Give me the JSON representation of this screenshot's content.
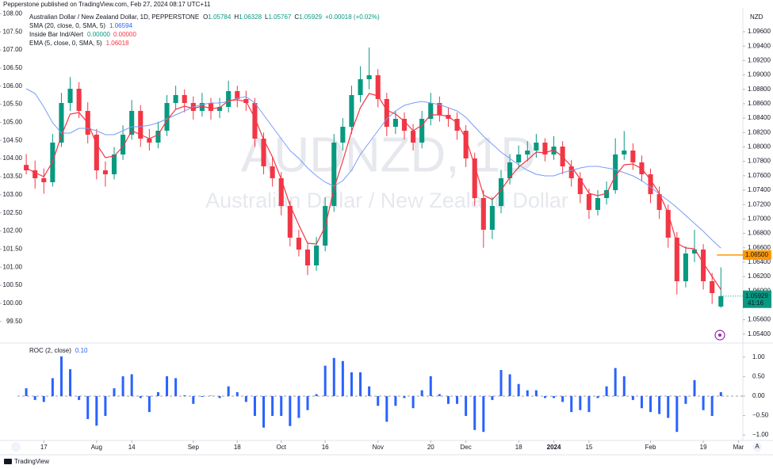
{
  "header": {
    "publisher": "Pepperstone published on TradingView.com, Feb 27, 2024 08:17 UTC+11",
    "symbol": "Australian Dollar / New Zealand Dollar, 1D, PEPPERSTONE",
    "o": "O",
    "h": "H",
    "l": "L",
    "c": "C",
    "change": "+0.00018 (+0.02%)",
    "currency": "NZD",
    "brand": "TradingView",
    "auto": "A"
  },
  "chart_data": [
    {
      "type": "candlestick",
      "watermark_symbol": "AUDNZD, 1D",
      "watermark_name": "Australian Dollar / New Zealand Dollar",
      "up_color": "#089981",
      "down_color": "#f23645",
      "xlim": [
        -1,
        81.5
      ],
      "xticks": [
        {
          "value": 2,
          "label": "17"
        },
        {
          "value": 8,
          "label": "Aug"
        },
        {
          "value": 12,
          "label": "14"
        },
        {
          "value": 19,
          "label": "Sep"
        },
        {
          "value": 24,
          "label": "18"
        },
        {
          "value": 29,
          "label": "Oct"
        },
        {
          "value": 34,
          "label": "16"
        },
        {
          "value": 40,
          "label": "Nov"
        },
        {
          "value": 46,
          "label": "20"
        },
        {
          "value": 50,
          "label": "Dec"
        },
        {
          "value": 56,
          "label": "18"
        },
        {
          "value": 60,
          "label": "2024",
          "bold": true
        },
        {
          "value": 64,
          "label": "15"
        },
        {
          "value": 71,
          "label": "Feb"
        },
        {
          "value": 77,
          "label": "19"
        },
        {
          "value": 81,
          "label": "Mar"
        }
      ],
      "ylim": [
        1.0531,
        1.0993
      ],
      "yticks": [
        {
          "value": 1.054,
          "label": "1.05400"
        },
        {
          "value": 1.056,
          "label": "1.05600"
        },
        {
          "value": 1.058,
          "label": "1.05800"
        },
        {
          "value": 1.06,
          "label": "1.06000"
        },
        {
          "value": 1.062,
          "label": "1.06200"
        },
        {
          "value": 1.064,
          "label": "1.06400"
        },
        {
          "value": 1.066,
          "label": "1.06600"
        },
        {
          "value": 1.068,
          "label": "1.06800"
        },
        {
          "value": 1.07,
          "label": "1.07000"
        },
        {
          "value": 1.072,
          "label": "1.07200"
        },
        {
          "value": 1.074,
          "label": "1.07400"
        },
        {
          "value": 1.076,
          "label": "1.07600"
        },
        {
          "value": 1.078,
          "label": "1.07800"
        },
        {
          "value": 1.08,
          "label": "1.08000"
        },
        {
          "value": 1.082,
          "label": "1.08200"
        },
        {
          "value": 1.084,
          "label": "1.08400"
        },
        {
          "value": 1.086,
          "label": "1.08600"
        },
        {
          "value": 1.088,
          "label": "1.08800"
        },
        {
          "value": 1.09,
          "label": "1.09000"
        },
        {
          "value": 1.092,
          "label": "1.09200"
        },
        {
          "value": 1.094,
          "label": "1.09400"
        },
        {
          "value": 1.096,
          "label": "1.09600"
        }
      ],
      "left_ylim": [
        98.97,
        108.16
      ],
      "left_yticks": [
        {
          "value": 99.5,
          "label": "99.50"
        },
        {
          "value": 100,
          "label": "100.00"
        },
        {
          "value": 100.5,
          "label": "100.50"
        },
        {
          "value": 101,
          "label": "101.00"
        },
        {
          "value": 101.5,
          "label": "101.50"
        },
        {
          "value": 102,
          "label": "102.00"
        },
        {
          "value": 102.5,
          "label": "102.50"
        },
        {
          "value": 103,
          "label": "103.00"
        },
        {
          "value": 103.5,
          "label": "103.50"
        },
        {
          "value": 104,
          "label": "104.00"
        },
        {
          "value": 104.5,
          "label": "104.50"
        },
        {
          "value": 105,
          "label": "105.00"
        },
        {
          "value": 105.5,
          "label": "105.50"
        },
        {
          "value": 106,
          "label": "106.00"
        },
        {
          "value": 106.5,
          "label": "106.50"
        },
        {
          "value": 107,
          "label": "107.00"
        },
        {
          "value": 107.5,
          "label": "107.50"
        },
        {
          "value": 108,
          "label": "108.00"
        }
      ],
      "hline": {
        "value": 1.065,
        "label": "1.06500",
        "color": "#ff9800"
      },
      "countdown": "41:16",
      "indicator": {
        "name": "Inside Bar Ind/Alert",
        "values": [
          "0.00000",
          "0.00000"
        ],
        "colors": [
          "#089981",
          "#f23645"
        ]
      },
      "ohlc": [
        [
          1.0775,
          1.079,
          1.0762,
          1.07675
        ],
        [
          1.07675,
          1.0781,
          1.0742,
          1.07565
        ],
        [
          1.07565,
          1.077,
          1.0735,
          1.0751
        ],
        [
          1.0751,
          1.0818,
          1.0745,
          1.0806
        ],
        [
          1.0806,
          1.0875,
          1.08,
          1.0861
        ],
        [
          1.0861,
          1.0897,
          1.085,
          1.08808
        ],
        [
          1.08808,
          1.089,
          1.084,
          1.085
        ],
        [
          1.085,
          1.0862,
          1.0805,
          1.0817
        ],
        [
          1.0817,
          1.0825,
          1.0755,
          1.07675
        ],
        [
          1.07675,
          1.078,
          1.0745,
          1.0762
        ],
        [
          1.0762,
          1.08,
          1.0755,
          1.07895
        ],
        [
          1.07895,
          1.083,
          1.0782,
          1.0817
        ],
        [
          1.0817,
          1.0865,
          1.081,
          1.085
        ],
        [
          1.085,
          1.0858,
          1.08,
          1.08115
        ],
        [
          1.08115,
          1.0825,
          1.0795,
          1.0806
        ],
        [
          1.0806,
          1.0835,
          1.0798,
          1.08225
        ],
        [
          1.08225,
          1.0872,
          1.0815,
          1.0861
        ],
        [
          1.0861,
          1.0885,
          1.0852,
          1.0872
        ],
        [
          1.0872,
          1.088,
          1.0848,
          1.0861
        ],
        [
          1.0861,
          1.087,
          1.0838,
          1.085
        ],
        [
          1.085,
          1.0875,
          1.0842,
          1.0861
        ],
        [
          1.0861,
          1.0868,
          1.0838,
          1.085
        ],
        [
          1.085,
          1.0868,
          1.084,
          1.08555
        ],
        [
          1.08555,
          1.0892,
          1.0848,
          1.08775
        ],
        [
          1.08775,
          1.0885,
          1.0855,
          1.08665
        ],
        [
          1.08665,
          1.0878,
          1.085,
          1.0861
        ],
        [
          1.0861,
          1.0868,
          1.08,
          1.08115
        ],
        [
          1.08115,
          1.082,
          1.0762,
          1.0773
        ],
        [
          1.0773,
          1.0785,
          1.0745,
          1.07565
        ],
        [
          1.07565,
          1.0765,
          1.0705,
          1.0718
        ],
        [
          1.0718,
          1.0725,
          1.0662,
          1.0674
        ],
        [
          1.0674,
          1.0685,
          1.0648,
          1.06575
        ],
        [
          1.06575,
          1.0668,
          1.0622,
          1.06355
        ],
        [
          1.06355,
          1.0675,
          1.0628,
          1.0663
        ],
        [
          1.0663,
          1.073,
          1.0655,
          1.0718
        ],
        [
          1.0718,
          1.0818,
          1.071,
          1.0806
        ],
        [
          1.0806,
          1.084,
          1.0795,
          1.0828
        ],
        [
          1.0828,
          1.0885,
          1.0818,
          1.0872
        ],
        [
          1.0872,
          1.0912,
          1.0862,
          1.0894
        ],
        [
          1.0894,
          1.0938,
          1.088,
          1.08995
        ],
        [
          1.08995,
          1.0908,
          1.0855,
          1.08665
        ],
        [
          1.08665,
          1.0875,
          1.0815,
          1.0828
        ],
        [
          1.0828,
          1.085,
          1.0818,
          1.0839
        ],
        [
          1.0839,
          1.0848,
          1.081,
          1.08225
        ],
        [
          1.08225,
          1.0832,
          1.0795,
          1.0806
        ],
        [
          1.0806,
          1.085,
          1.0798,
          1.0839
        ],
        [
          1.0839,
          1.0875,
          1.083,
          1.0861
        ],
        [
          1.0861,
          1.087,
          1.0835,
          1.08445
        ],
        [
          1.08445,
          1.0855,
          1.0828,
          1.0839
        ],
        [
          1.0839,
          1.0848,
          1.081,
          1.08225
        ],
        [
          1.08225,
          1.083,
          1.0772,
          1.0784
        ],
        [
          1.0784,
          1.0792,
          1.0718,
          1.0729
        ],
        [
          1.0729,
          1.074,
          1.066,
          1.0685
        ],
        [
          1.0685,
          1.073,
          1.0672,
          1.0718
        ],
        [
          1.0718,
          1.0768,
          1.0708,
          1.07565
        ],
        [
          1.07565,
          1.079,
          1.0748,
          1.07785
        ],
        [
          1.07785,
          1.0802,
          1.077,
          1.07895
        ],
        [
          1.07895,
          1.0808,
          1.078,
          1.0795
        ],
        [
          1.0795,
          1.0818,
          1.0785,
          1.0806
        ],
        [
          1.0806,
          1.0812,
          1.078,
          1.07895
        ],
        [
          1.07895,
          1.0815,
          1.0782,
          1.08005
        ],
        [
          1.08005,
          1.0808,
          1.0762,
          1.0773
        ],
        [
          1.0773,
          1.0782,
          1.0745,
          1.07565
        ],
        [
          1.07565,
          1.0765,
          1.0722,
          1.07345
        ],
        [
          1.07345,
          1.0742,
          1.07,
          1.07125
        ],
        [
          1.07125,
          1.074,
          1.0705,
          1.0729
        ],
        [
          1.0729,
          1.0752,
          1.072,
          1.074
        ],
        [
          1.074,
          1.0812,
          1.0735,
          1.07895
        ],
        [
          1.07895,
          1.0822,
          1.0782,
          1.0795
        ],
        [
          1.0795,
          1.0805,
          1.0768,
          1.07785
        ],
        [
          1.07785,
          1.0788,
          1.0752,
          1.0762
        ],
        [
          1.0762,
          1.077,
          1.0722,
          1.07345
        ],
        [
          1.07345,
          1.0745,
          1.07,
          1.07125
        ],
        [
          1.07125,
          1.072,
          1.066,
          1.0674
        ],
        [
          1.0674,
          1.0682,
          1.0595,
          1.06135
        ],
        [
          1.06135,
          1.0662,
          1.0605,
          1.0652
        ],
        [
          1.0652,
          1.0685,
          1.064,
          1.06575
        ],
        [
          1.06575,
          1.0665,
          1.0602,
          1.06135
        ],
        [
          1.06135,
          1.0625,
          1.0582,
          1.0597
        ],
        [
          1.05784,
          1.06328,
          1.05767,
          1.05929
        ]
      ],
      "series": [
        {
          "name": "SMA (20, close, 0, SMA, 5)",
          "color": "#7b9cf4",
          "values": [
            1.08808,
            1.08742,
            1.08555,
            1.08335,
            1.08192,
            1.08192,
            1.08258,
            1.08258,
            1.08225,
            1.0817,
            1.0817,
            1.08225,
            1.0828,
            1.0828,
            1.08302,
            1.08335,
            1.0839,
            1.08445,
            1.085,
            1.08555,
            1.08588,
            1.0861,
            1.0861,
            1.08632,
            1.08676,
            1.08698,
            1.0861,
            1.08445,
            1.0828,
            1.08115,
            1.0795,
            1.0784,
            1.07708,
            1.07598,
            1.0751,
            1.07455,
            1.07532,
            1.07675,
            1.07895,
            1.0806,
            1.08225,
            1.0839,
            1.085,
            1.08577,
            1.0861,
            1.08632,
            1.0861,
            1.08588,
            1.08544,
            1.085,
            1.08412,
            1.0828,
            1.08148,
            1.08038,
            1.07928,
            1.0784,
            1.07752,
            1.07675,
            1.0762,
            1.07598,
            1.07598,
            1.07642,
            1.07675,
            1.07708,
            1.0773,
            1.0773,
            1.07708,
            1.07686,
            1.07642,
            1.07598,
            1.07532,
            1.07444,
            1.07345,
            1.07257,
            1.07158,
            1.07048,
            1.06938,
            1.06828,
            1.06707,
            1.06594
          ]
        },
        {
          "name": "EMA (5, close, 0, SMA, 5)",
          "color": "#f23645",
          "values": [
            1.07708,
            1.07642,
            1.07587,
            1.07796,
            1.08159,
            1.08456,
            1.08478,
            1.08335,
            1.08038,
            1.07851,
            1.07873,
            1.08005,
            1.08225,
            1.0817,
            1.08115,
            1.0817,
            1.08368,
            1.08522,
            1.08566,
            1.08533,
            1.08566,
            1.08533,
            1.08544,
            1.08643,
            1.08654,
            1.08632,
            1.08401,
            1.08104,
            1.07862,
            1.07554,
            1.07191,
            1.06916,
            1.06663,
            1.06652,
            1.06894,
            1.07422,
            1.07807,
            1.08214,
            1.08544,
            1.08742,
            1.08709,
            1.08511,
            1.08456,
            1.08357,
            1.08225,
            1.08302,
            1.08445,
            1.08445,
            1.08423,
            1.08335,
            1.08115,
            1.07741,
            1.07334,
            1.07268,
            1.074,
            1.07576,
            1.07719,
            1.07818,
            1.07928,
            1.07917,
            1.07961,
            1.07862,
            1.0773,
            1.07554,
            1.07356,
            1.07323,
            1.07356,
            1.07598,
            1.07752,
            1.07763,
            1.07697,
            1.07543,
            1.07356,
            1.07081,
            1.06663,
            1.06597,
            1.06586,
            1.06388,
            1.06201,
            1.06018
          ]
        }
      ]
    },
    {
      "type": "bar",
      "name": "ROC (2, close)",
      "legend_value": "0.10",
      "color": "#2962ff",
      "ylim": [
        -1.14,
        1.22
      ],
      "yticks": [
        {
          "value": -1,
          "label": "−1.00"
        },
        {
          "value": -0.5,
          "label": "−0.50"
        },
        {
          "value": 0,
          "label": "0.00"
        },
        {
          "value": 0.5,
          "label": "0.50"
        },
        {
          "value": 1,
          "label": "1.00"
        }
      ],
      "values": [
        0.2,
        -0.1,
        -0.15,
        0.46,
        1.02,
        0.69,
        -0.1,
        -0.59,
        -0.76,
        -0.51,
        0.2,
        0.51,
        0.56,
        -0.05,
        -0.41,
        0.1,
        0.51,
        0.46,
        0.02,
        -0.2,
        -0.02,
        0.01,
        -0.05,
        0.25,
        0.1,
        -0.15,
        -0.51,
        -0.81,
        -0.51,
        -0.51,
        -0.77,
        -0.56,
        -0.36,
        0.05,
        0.78,
        0.98,
        0.9,
        0.61,
        0.61,
        0.25,
        -0.25,
        -0.66,
        -0.25,
        -0.05,
        -0.31,
        0.15,
        0.51,
        0.05,
        -0.2,
        -0.2,
        -0.51,
        -0.87,
        -0.92,
        -0.1,
        0.67,
        0.56,
        0.31,
        0.15,
        0.15,
        -0.05,
        -0.05,
        -0.15,
        -0.41,
        -0.36,
        -0.41,
        -0.05,
        0.25,
        0.72,
        0.51,
        -0.1,
        -0.31,
        -0.41,
        -0.46,
        -0.56,
        -0.92,
        -0.2,
        0.41,
        -0.36,
        -0.51,
        0.1
      ]
    }
  ]
}
